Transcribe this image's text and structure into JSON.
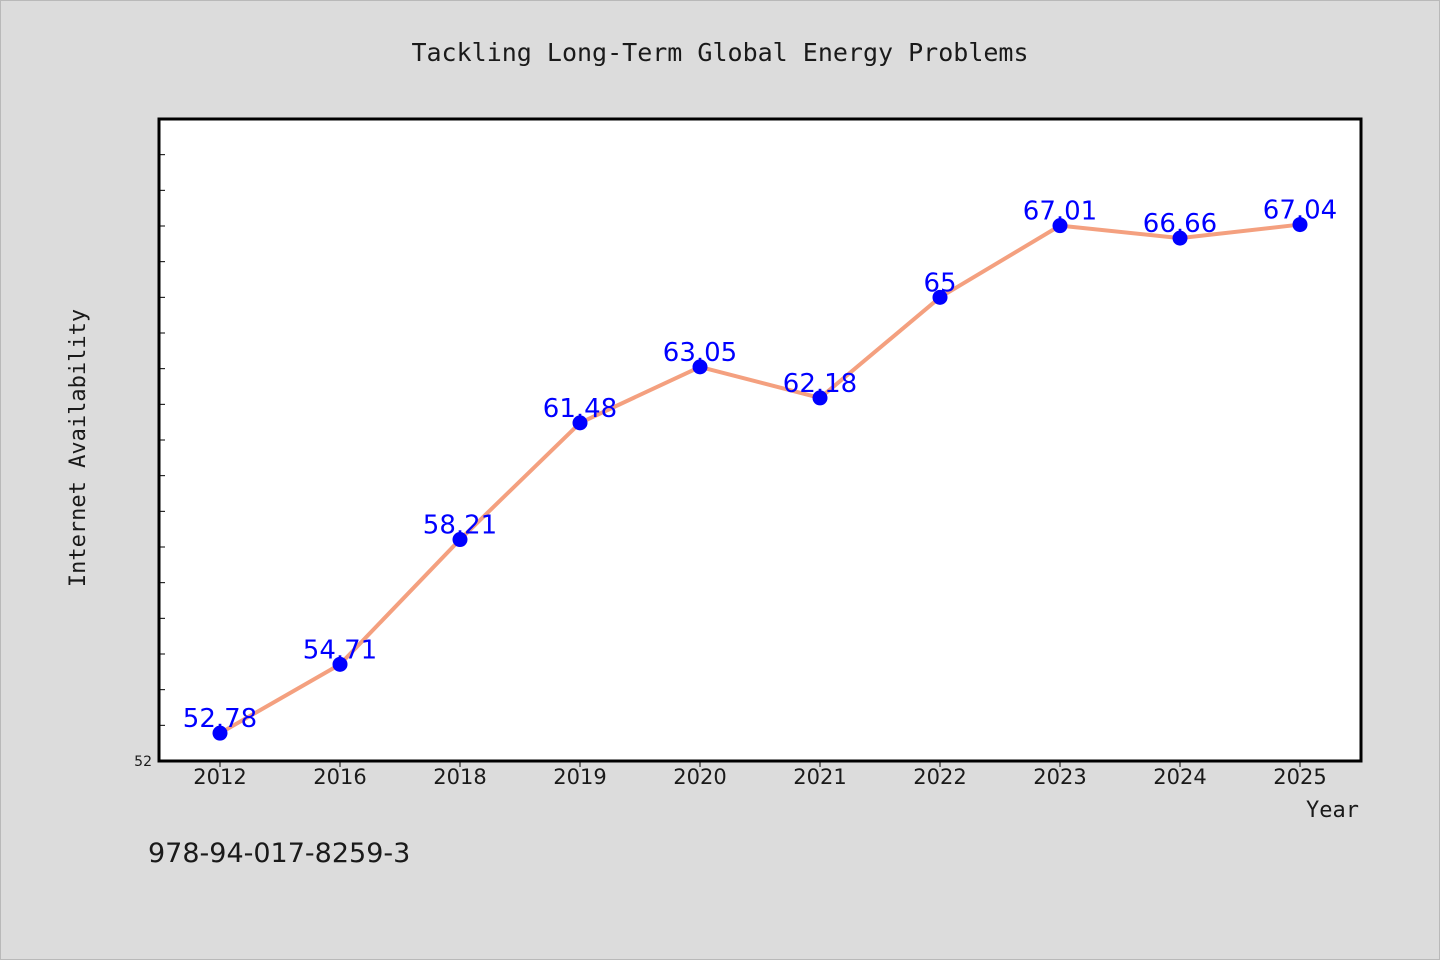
{
  "chart_data": {
    "type": "line",
    "title": "Tackling Long-Term Global Energy Problems",
    "xlabel": "Year",
    "ylabel": "Internet Availability",
    "categories": [
      "2012",
      "2016",
      "2018",
      "2019",
      "2020",
      "2021",
      "2022",
      "2023",
      "2024",
      "2025"
    ],
    "series": [
      {
        "values": [
          52.78,
          54.71,
          58.21,
          61.48,
          63.05,
          62.18,
          65,
          67.01,
          66.66,
          67.04
        ],
        "labels": [
          "52.78",
          "54.71",
          "58.21",
          "61.48",
          "63.05",
          "62.18",
          "65",
          "67.01",
          "66.66",
          "67.04"
        ]
      }
    ],
    "ylim": [
      52,
      70
    ],
    "y_min_label": "52",
    "y_minor_tick_step": 1,
    "grid": false,
    "line_color": "#f4a07f",
    "marker_color": "#0000ff",
    "label_color": "#0000ff",
    "background": "#ffffff"
  },
  "footnote": "978-94-017-8259-3"
}
